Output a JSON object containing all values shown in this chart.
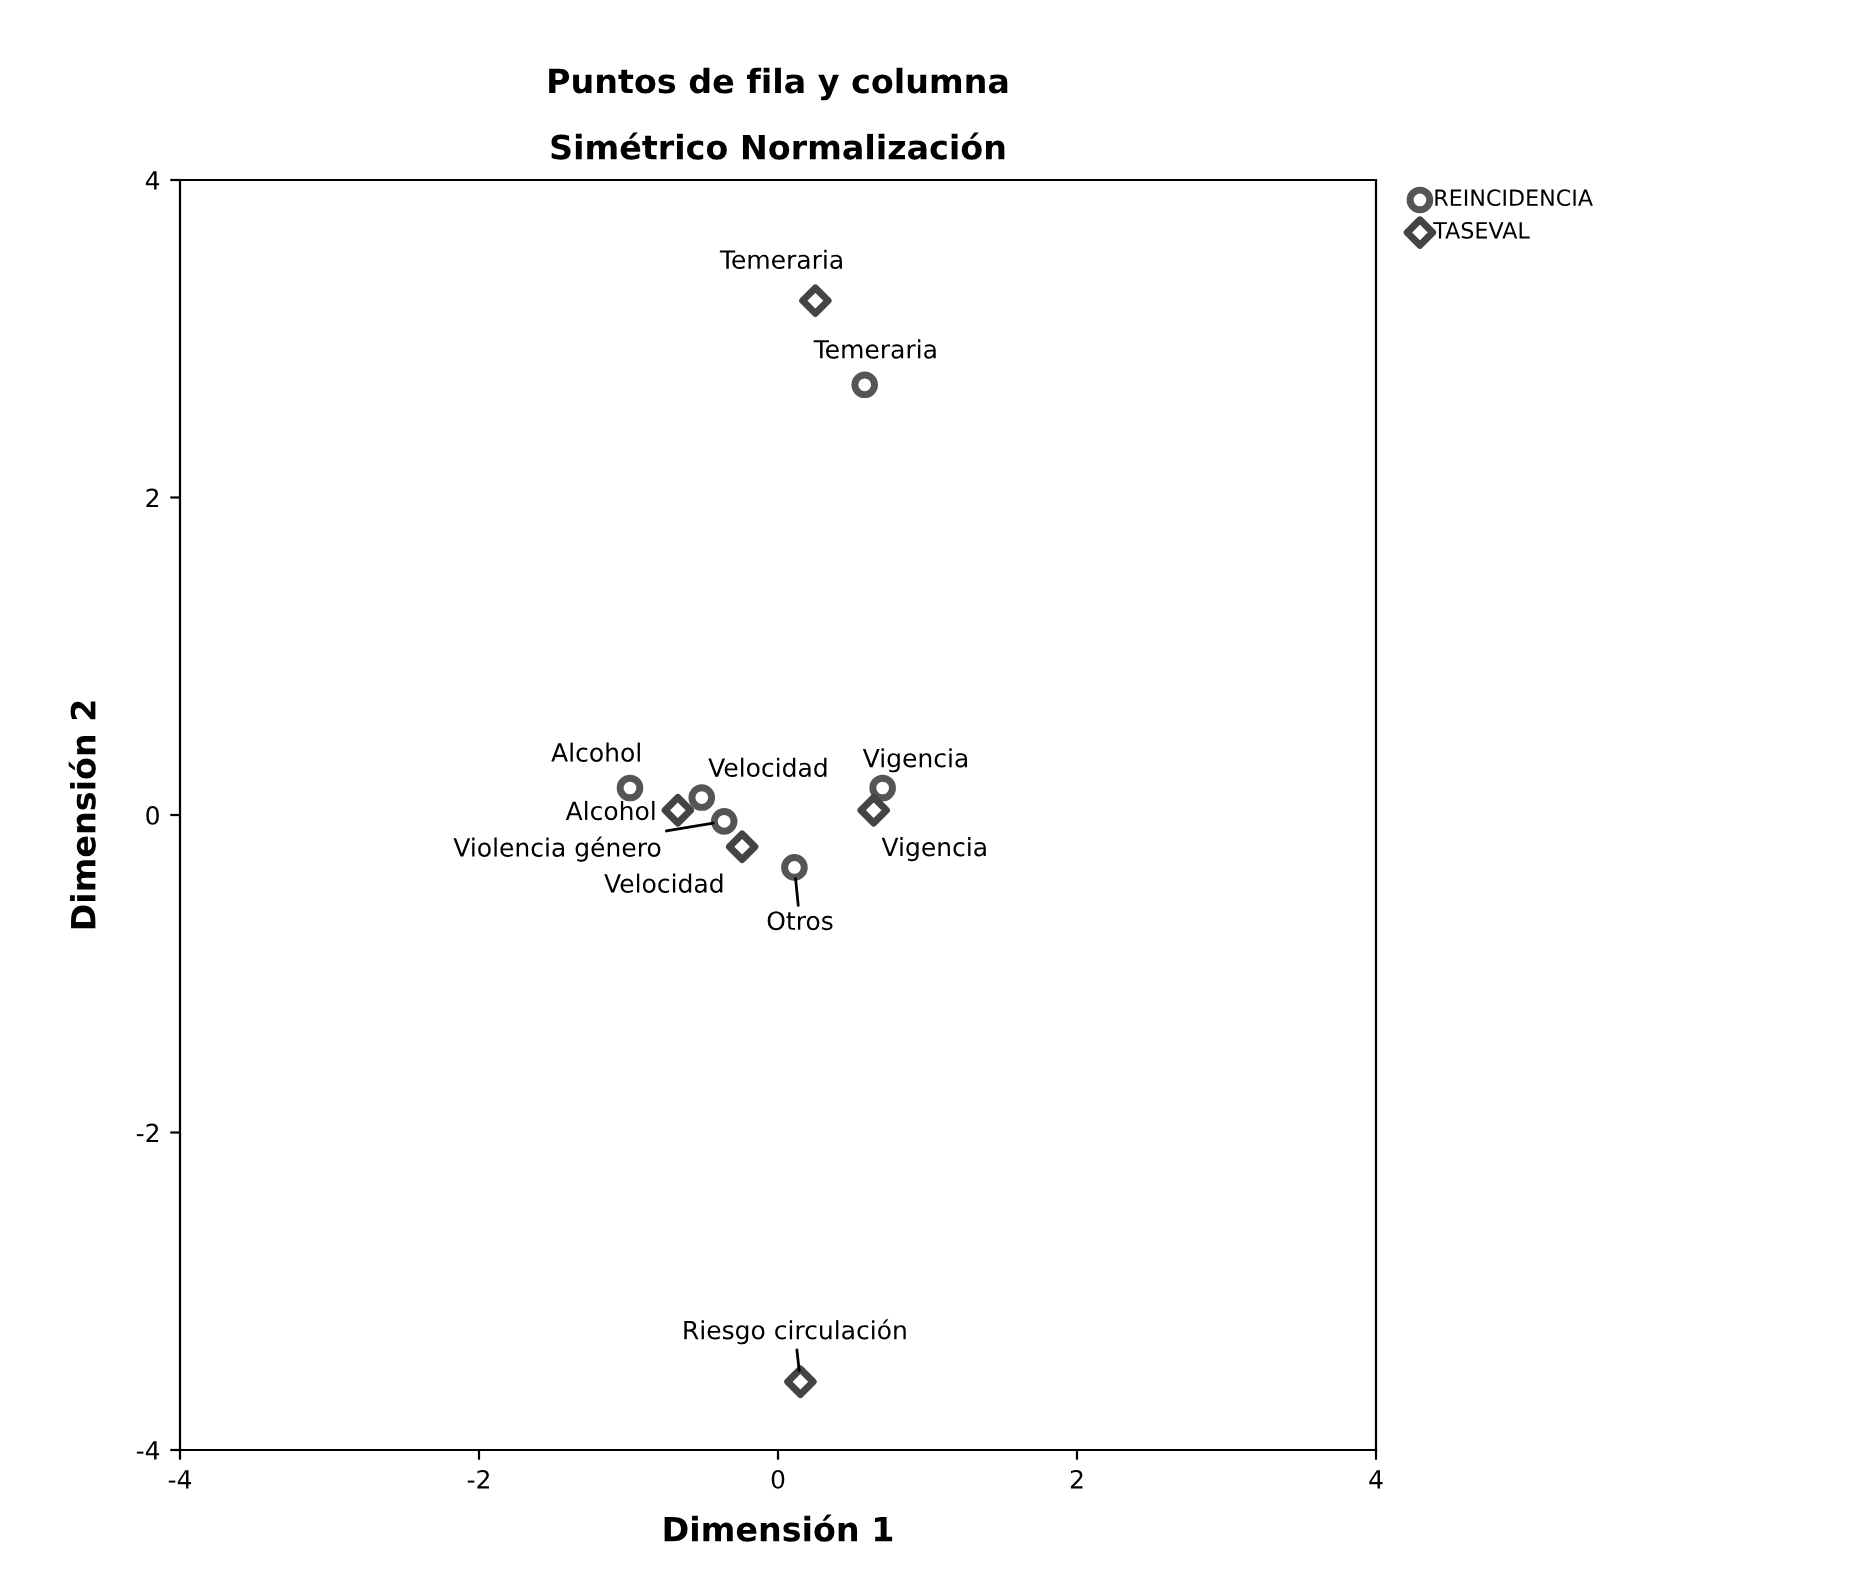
{
  "chart_data": {
    "type": "scatter",
    "title": "Puntos de fila y columna",
    "subtitle": "Simétrico Normalización",
    "xlabel": "Dimensión 1",
    "ylabel": "Dimensión 2",
    "xlim": [
      -4,
      4
    ],
    "ylim": [
      -4,
      4
    ],
    "xticks": [
      -4,
      -2,
      0,
      2,
      4
    ],
    "yticks": [
      -4,
      -2,
      0,
      2,
      4
    ],
    "grid": false,
    "legend": "top right",
    "series": [
      {
        "name": "REINCIDENCIA",
        "color": "#555555",
        "marker": "circle",
        "x": [
          0.58,
          -0.99,
          -0.51,
          -0.36,
          0.7,
          0.11
        ],
        "values": [
          2.71,
          0.17,
          0.11,
          -0.04,
          0.17,
          -0.33
        ]
      },
      {
        "name": "TASEVAL",
        "color": "#444444",
        "marker": "diamond",
        "x": [
          0.25,
          -0.67,
          -0.24,
          0.64,
          0.15
        ],
        "values": [
          3.24,
          0.03,
          -0.2,
          0.03,
          -3.57
        ]
      }
    ],
    "annotations": [
      {
        "text": "Temeraria",
        "x": 0.58,
        "y": 2.71
      },
      {
        "text": "Alcohol",
        "x": -0.99,
        "y": 0.17
      },
      {
        "text": "Velocidad",
        "x": -0.51,
        "y": 0.11
      },
      {
        "text": "Violencia género",
        "x": -0.36,
        "y": -0.04
      },
      {
        "text": "Vigencia",
        "x": 0.7,
        "y": 0.17
      },
      {
        "text": "Otros",
        "x": 0.11,
        "y": -0.33
      },
      {
        "text": "Temeraria",
        "x": 0.25,
        "y": 3.24
      },
      {
        "text": "Alcohol",
        "x": -0.67,
        "y": 0.03
      },
      {
        "text": "Velocidad",
        "x": -0.24,
        "y": -0.2
      },
      {
        "text": "Vigencia",
        "x": 0.64,
        "y": 0.03
      },
      {
        "text": "Riesgo circulación",
        "x": 0.15,
        "y": -3.57
      }
    ]
  }
}
